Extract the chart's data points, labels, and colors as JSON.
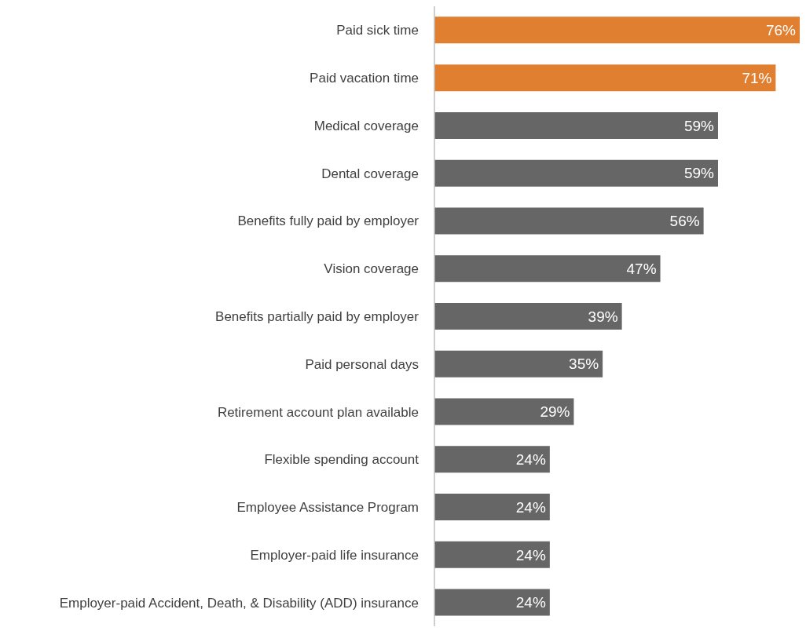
{
  "chart_data": {
    "type": "bar",
    "orientation": "horizontal",
    "categories": [
      "Paid sick time",
      "Paid vacation time",
      "Medical coverage",
      "Dental coverage",
      "Benefits fully paid by employer",
      "Vision coverage",
      "Benefits partially paid by employer",
      "Paid personal days",
      "Retirement account plan available",
      "Flexible spending account",
      "Employee Assistance Program",
      "Employer-paid life insurance",
      "Employer-paid Accident, Death, & Disability (ADD) insurance"
    ],
    "values": [
      76,
      71,
      59,
      59,
      56,
      47,
      39,
      35,
      29,
      24,
      24,
      24,
      24
    ],
    "colors": [
      "#e07f2f",
      "#e07f2f",
      "#666666",
      "#666666",
      "#666666",
      "#666666",
      "#666666",
      "#666666",
      "#666666",
      "#666666",
      "#666666",
      "#666666",
      "#666666"
    ],
    "value_labels": [
      "76%",
      "71%",
      "59%",
      "59%",
      "56%",
      "47%",
      "39%",
      "35%",
      "29%",
      "24%",
      "24%",
      "24%",
      "24%"
    ],
    "grid": false,
    "legend": false
  }
}
